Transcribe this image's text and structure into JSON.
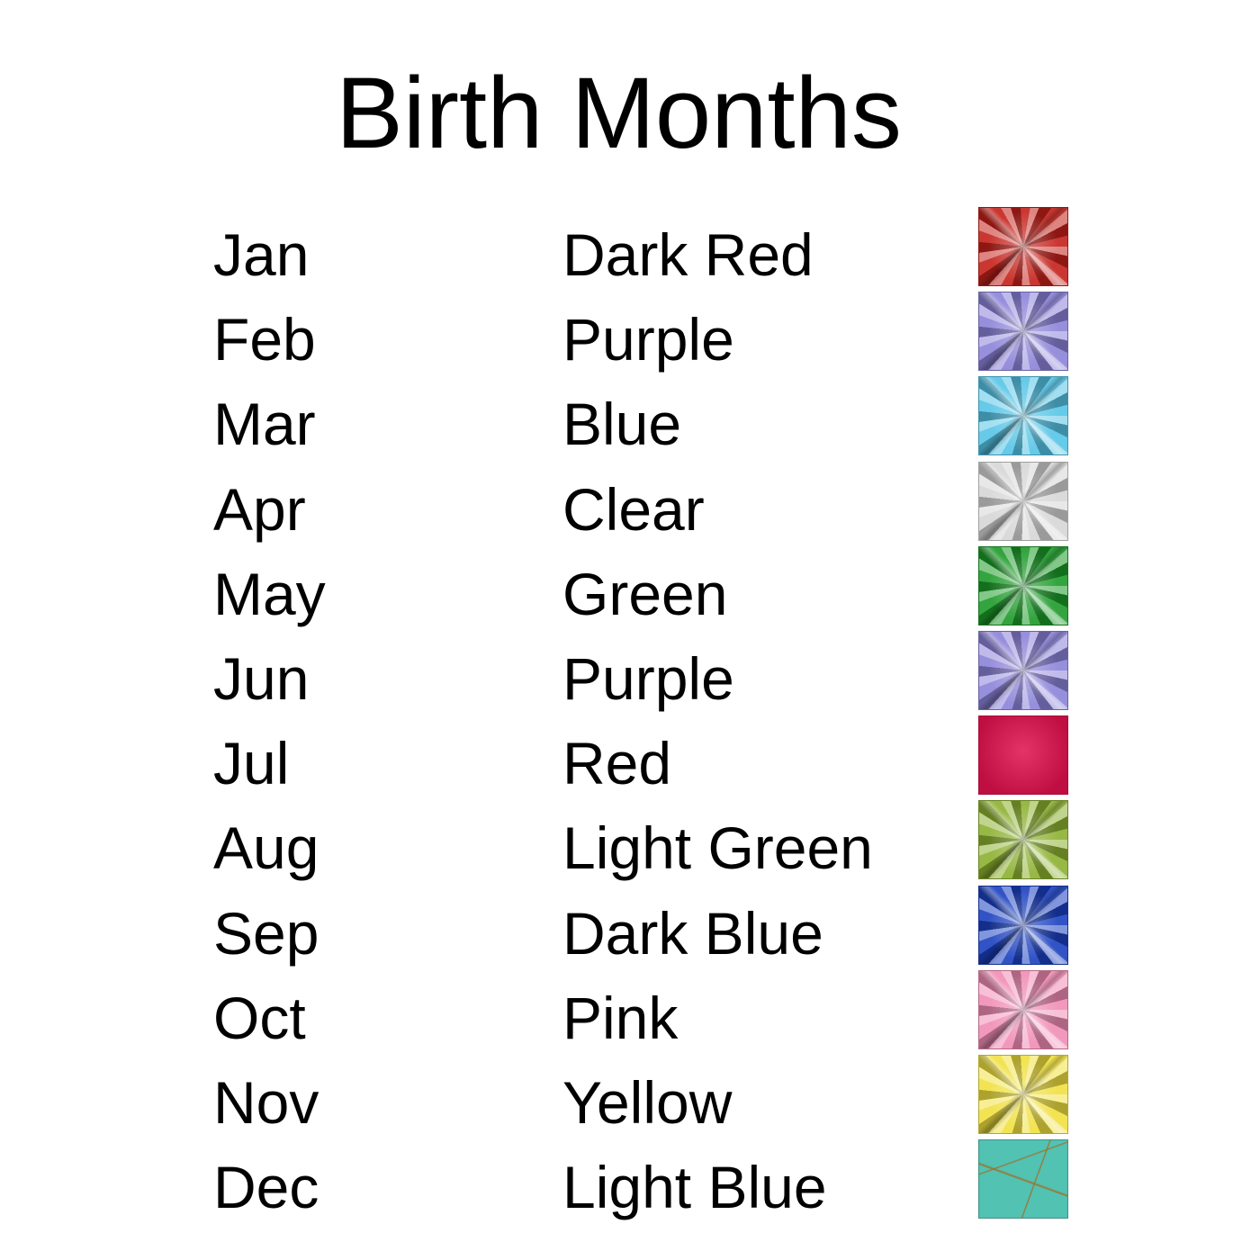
{
  "title": "Birth Months",
  "rows": [
    {
      "month": "Jan",
      "color": "Dark Red",
      "gem_color": "#c4201a",
      "style": "faceted"
    },
    {
      "month": "Feb",
      "color": "Purple",
      "gem_color": "#8a82d8",
      "style": "faceted"
    },
    {
      "month": "Mar",
      "color": "Blue",
      "gem_color": "#55c4e6",
      "style": "faceted"
    },
    {
      "month": "Apr",
      "color": "Clear",
      "gem_color": "#d6d6d6",
      "style": "faceted"
    },
    {
      "month": "May",
      "color": "Green",
      "gem_color": "#1c9a28",
      "style": "faceted"
    },
    {
      "month": "Jun",
      "color": "Purple",
      "gem_color": "#8a82d8",
      "style": "faceted"
    },
    {
      "month": "Jul",
      "color": "Red",
      "gem_color": "#e0104c",
      "style": "smooth"
    },
    {
      "month": "Aug",
      "color": "Light Green",
      "gem_color": "#8cb030",
      "style": "faceted"
    },
    {
      "month": "Sep",
      "color": "Dark Blue",
      "gem_color": "#1a40c0",
      "style": "faceted"
    },
    {
      "month": "Oct",
      "color": "Pink",
      "gem_color": "#f08cb4",
      "style": "faceted"
    },
    {
      "month": "Nov",
      "color": "Yellow",
      "gem_color": "#f0e040",
      "style": "faceted"
    },
    {
      "month": "Dec",
      "color": "Light Blue",
      "gem_color": "#52c2b2",
      "style": "stone"
    }
  ]
}
